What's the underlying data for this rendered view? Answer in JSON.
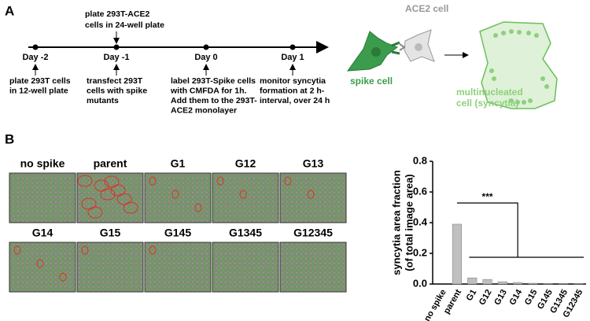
{
  "panel_a": {
    "label": "A",
    "timeline": [
      {
        "day": "Day -2",
        "below": [
          "plate 293T cells",
          "in 12-well plate"
        ]
      },
      {
        "day": "Day -1",
        "above": [
          "plate 293T-ACE2",
          "cells in 24-well plate"
        ],
        "below": [
          "transfect 293T",
          "cells with spike",
          "mutants"
        ]
      },
      {
        "day": "Day 0",
        "below": [
          "label 293T-Spike cells",
          "with CMFDA for 1h.",
          "Add them to the 293T-",
          "ACE2 monolayer"
        ]
      },
      {
        "day": "Day 1",
        "below": [
          "monitor syncytia",
          "formation at 2 h-",
          "interval, over 24 h"
        ]
      }
    ],
    "diagram": {
      "ace2_cell": "ACE2 cell",
      "spike_cell": "spike cell",
      "syncytia": [
        "multinucleated",
        "cell (syncytia)"
      ]
    }
  },
  "panel_b": {
    "label": "B",
    "images": [
      "no spike",
      "parent",
      "G1",
      "G12",
      "G13",
      "G14",
      "G15",
      "G145",
      "G1345",
      "G12345"
    ]
  },
  "chart_data": {
    "type": "bar",
    "y_label": [
      "syncytia area fraction",
      "(of total image area)"
    ],
    "categories": [
      "no spike",
      "parent",
      "G1",
      "G12",
      "G13",
      "G14",
      "G15",
      "G145",
      "G1345",
      "G12345"
    ],
    "values": [
      0,
      0.39,
      0.04,
      0.03,
      0.015,
      0.01,
      0.005,
      0.002,
      0.002,
      0.002
    ],
    "color": "#c0c0c0",
    "ylim": [
      0,
      0.8
    ],
    "yticks": [
      {
        "value": 0,
        "label": "0.0"
      },
      0.2,
      0.4,
      0.6,
      0.8
    ],
    "annotation": "***"
  }
}
